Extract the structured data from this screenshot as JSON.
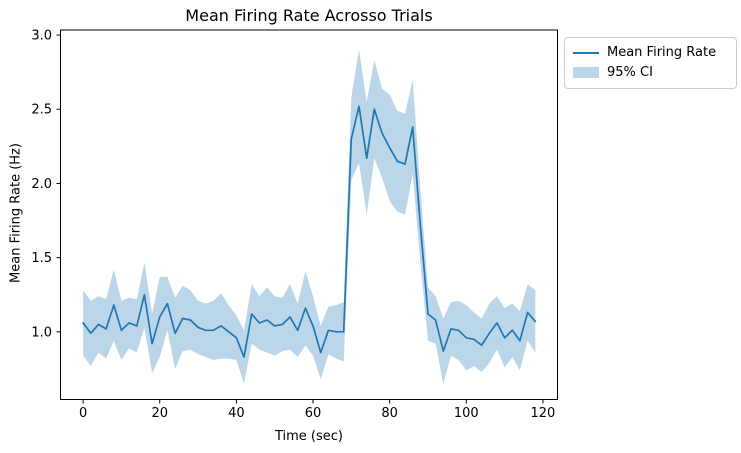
{
  "chart_data": {
    "type": "line",
    "title": "Mean Firing Rate Acrosso Trials",
    "xlabel": "Time (sec)",
    "ylabel": "Mean Firing Rate (Hz)",
    "xlim": [
      -5.9,
      123.8
    ],
    "ylim": [
      0.544,
      3.034
    ],
    "xticks": [
      0,
      20,
      40,
      60,
      80,
      100,
      120
    ],
    "xtick_labels": [
      "0",
      "20",
      "40",
      "60",
      "80",
      "100",
      "120"
    ],
    "yticks": [
      1.0,
      1.5,
      2.0,
      2.5,
      3.0
    ],
    "ytick_labels": [
      "1.0",
      "1.5",
      "2.0",
      "2.5",
      "3.0"
    ],
    "grid": false,
    "line_color": "#1f77b4",
    "band_color": "#1f77b4",
    "band_alpha": 0.3,
    "legend": {
      "position": "upper-right-outside",
      "entries": [
        {
          "label": "Mean Firing Rate",
          "type": "line",
          "color": "#1f77b4"
        },
        {
          "label": "95% CI",
          "type": "patch",
          "color": "#1f77b4",
          "alpha": 0.3
        }
      ]
    },
    "x": [
      0,
      2,
      4,
      6,
      8,
      10,
      12,
      14,
      16,
      18,
      20,
      22,
      24,
      26,
      28,
      30,
      32,
      34,
      36,
      38,
      40,
      42,
      44,
      46,
      48,
      50,
      52,
      54,
      56,
      58,
      60,
      62,
      64,
      66,
      68,
      70,
      72,
      74,
      76,
      78,
      80,
      82,
      84,
      86,
      88,
      90,
      92,
      94,
      96,
      98,
      100,
      102,
      104,
      106,
      108,
      110,
      112,
      114,
      116,
      118
    ],
    "series": [
      {
        "name": "Mean Firing Rate",
        "type": "line",
        "values": [
          1.06,
          0.99,
          1.05,
          1.02,
          1.18,
          1.01,
          1.06,
          1.04,
          1.25,
          0.92,
          1.1,
          1.19,
          0.99,
          1.09,
          1.08,
          1.03,
          1.01,
          1.01,
          1.04,
          1.0,
          0.96,
          0.83,
          1.12,
          1.06,
          1.08,
          1.04,
          1.05,
          1.1,
          1.01,
          1.16,
          1.04,
          0.86,
          1.01,
          1.0,
          1.0,
          2.3,
          2.52,
          2.17,
          2.5,
          2.34,
          2.24,
          2.15,
          2.13,
          2.38,
          1.72,
          1.12,
          1.08,
          0.87,
          1.02,
          1.01,
          0.96,
          0.95,
          0.91,
          0.99,
          1.06,
          0.96,
          1.01,
          0.94,
          1.13,
          1.07
        ]
      },
      {
        "name": "95% CI upper",
        "type": "band-upper",
        "values": [
          1.28,
          1.21,
          1.24,
          1.22,
          1.42,
          1.21,
          1.23,
          1.22,
          1.47,
          1.12,
          1.37,
          1.37,
          1.23,
          1.31,
          1.28,
          1.21,
          1.19,
          1.21,
          1.26,
          1.18,
          1.11,
          1.01,
          1.32,
          1.24,
          1.3,
          1.24,
          1.23,
          1.32,
          1.19,
          1.41,
          1.24,
          1.04,
          1.17,
          1.18,
          1.2,
          2.58,
          2.9,
          2.55,
          2.83,
          2.64,
          2.6,
          2.49,
          2.47,
          2.7,
          1.97,
          1.3,
          1.24,
          1.09,
          1.2,
          1.21,
          1.18,
          1.13,
          1.09,
          1.19,
          1.24,
          1.16,
          1.19,
          1.14,
          1.32,
          1.28
        ]
      },
      {
        "name": "95% CI lower",
        "type": "band-lower",
        "values": [
          0.84,
          0.77,
          0.86,
          0.82,
          0.94,
          0.81,
          0.89,
          0.86,
          1.03,
          0.72,
          0.83,
          1.01,
          0.75,
          0.87,
          0.88,
          0.85,
          0.83,
          0.81,
          0.82,
          0.82,
          0.81,
          0.65,
          0.92,
          0.88,
          0.86,
          0.84,
          0.87,
          0.88,
          0.83,
          0.91,
          0.84,
          0.68,
          0.85,
          0.82,
          0.8,
          2.02,
          2.14,
          1.79,
          2.17,
          2.04,
          1.88,
          1.81,
          1.79,
          2.06,
          1.47,
          0.94,
          0.92,
          0.65,
          0.84,
          0.81,
          0.74,
          0.77,
          0.73,
          0.79,
          0.88,
          0.76,
          0.83,
          0.74,
          0.94,
          0.86
        ]
      }
    ]
  }
}
